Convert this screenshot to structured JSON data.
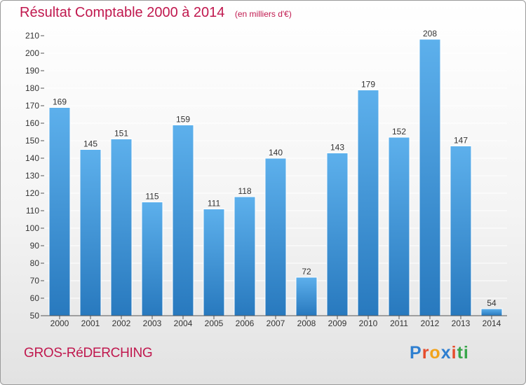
{
  "page": {
    "title": "Résultat Comptable 2000 à 2014",
    "unit": "(en milliers d'€)",
    "town": "GROS-RéDERCHING",
    "logo": [
      "P",
      "r",
      "o",
      "x",
      "i",
      "ti"
    ]
  },
  "colors": {
    "accent": "#c0184e",
    "bar_top": "#5db0ec",
    "bar_bottom": "#2879be",
    "grid": "#ffffff"
  },
  "chart_data": {
    "type": "bar",
    "title": "Résultat Comptable 2000 à 2014",
    "ylabel": "(en milliers d'€)",
    "xlabel": "",
    "categories": [
      "2000",
      "2001",
      "2002",
      "2003",
      "2004",
      "2005",
      "2006",
      "2007",
      "2008",
      "2009",
      "2010",
      "2011",
      "2012",
      "2013",
      "2014"
    ],
    "values": [
      169,
      145,
      151,
      115,
      159,
      111,
      118,
      140,
      72,
      143,
      179,
      152,
      208,
      147,
      54
    ],
    "ylim": [
      50,
      210
    ],
    "yticks": [
      50,
      60,
      70,
      80,
      90,
      100,
      110,
      120,
      130,
      140,
      150,
      160,
      170,
      180,
      190,
      200,
      210
    ],
    "grid": true
  }
}
